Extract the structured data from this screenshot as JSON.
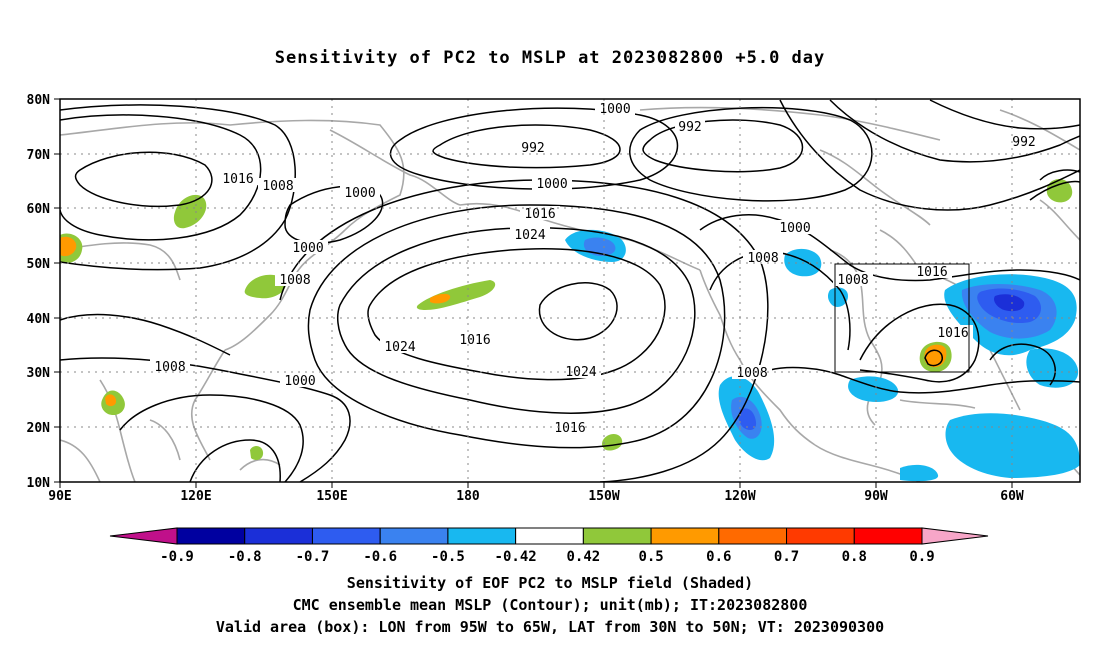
{
  "title": "Sensitivity of PC2 to MSLP at 2023082800 +5.0 day",
  "lat_labels": [
    "80N",
    "70N",
    "60N",
    "50N",
    "40N",
    "30N",
    "20N",
    "10N"
  ],
  "lon_labels": [
    "90E",
    "120E",
    "150E",
    "180",
    "150W",
    "120W",
    "90W",
    "60W"
  ],
  "contour_labels": [
    {
      "text": "1000"
    },
    {
      "text": "992"
    },
    {
      "text": "992"
    },
    {
      "text": "992"
    },
    {
      "text": "1016"
    },
    {
      "text": "1008"
    },
    {
      "text": "1000"
    },
    {
      "text": "1000"
    },
    {
      "text": "1000"
    },
    {
      "text": "1016"
    },
    {
      "text": "1024"
    },
    {
      "text": "1008"
    },
    {
      "text": "1008"
    },
    {
      "text": "1000"
    },
    {
      "text": "1008"
    },
    {
      "text": "1016"
    },
    {
      "text": "1024"
    },
    {
      "text": "1016"
    },
    {
      "text": "1016"
    },
    {
      "text": "1024"
    },
    {
      "text": "1008"
    },
    {
      "text": "1008"
    },
    {
      "text": "1000"
    },
    {
      "text": "1016"
    }
  ],
  "colorbar": {
    "colors": [
      "#0000a0",
      "#1b2fd8",
      "#2e5cf0",
      "#3a82f0",
      "#18b8f0",
      "#ffffff",
      "#90c83a",
      "#ff9a00",
      "#ff6a00",
      "#ff3a00",
      "#ff0000"
    ],
    "low_arrow_color": "#c0108a",
    "high_arrow_color": "#f7a6c8",
    "tick_labels": [
      "-0.9",
      "-0.8",
      "-0.7",
      "-0.6",
      "-0.5",
      "-0.42",
      "0.42",
      "0.5",
      "0.6",
      "0.7",
      "0.8",
      "0.9"
    ]
  },
  "captions": [
    "Sensitivity of EOF PC2 to MSLP field (Shaded)",
    "CMC ensemble mean MSLP (Contour); unit(mb); IT:2023082800",
    "Valid area (box): LON from 95W to 65W, LAT from 30N to 50N; VT: 2023090300"
  ]
}
